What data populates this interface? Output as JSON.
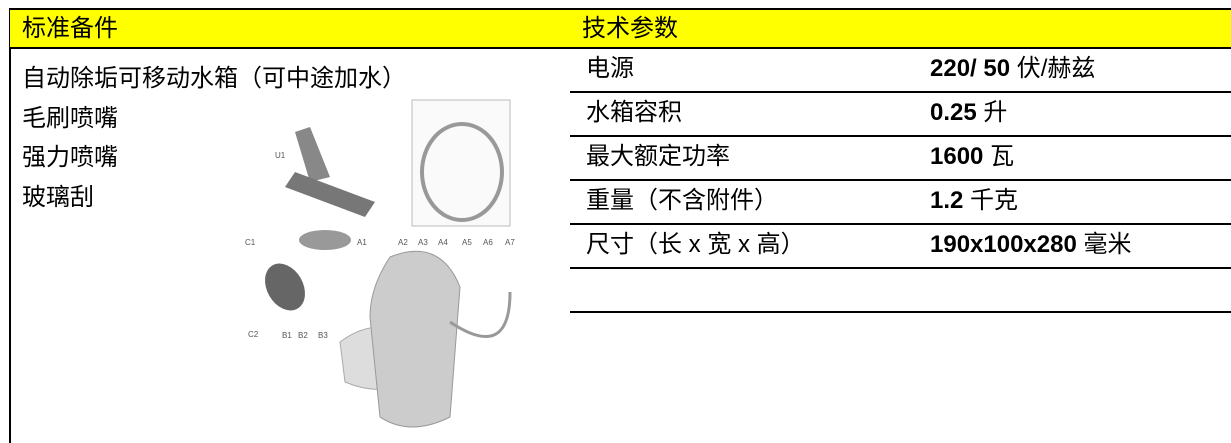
{
  "left": {
    "title": "标准备件",
    "items": [
      "自动除垢可移动水箱（可中途加水）",
      "毛刷喷嘴",
      "强力喷嘴",
      "玻璃刮"
    ]
  },
  "figure_labels": [
    "U1",
    "C1",
    "C2",
    "A1",
    "A2",
    "A3",
    "A4",
    "A5",
    "A6",
    "A7",
    "B1",
    "B2",
    "B3"
  ],
  "right": {
    "title": "技术参数",
    "rows": [
      {
        "label": "电源",
        "value": "220/ 50",
        "unit": "伏/赫兹"
      },
      {
        "label": "水箱容积",
        "value": "0.25",
        "unit": "升"
      },
      {
        "label": "最大额定功率",
        "value": "1600",
        "unit": "瓦"
      },
      {
        "label": "重量（不含附件）",
        "value": "1.2",
        "unit": "千克"
      },
      {
        "label": "尺寸（长 x 宽 x 高）",
        "value": "190x100x280",
        "unit": "毫米"
      }
    ]
  }
}
